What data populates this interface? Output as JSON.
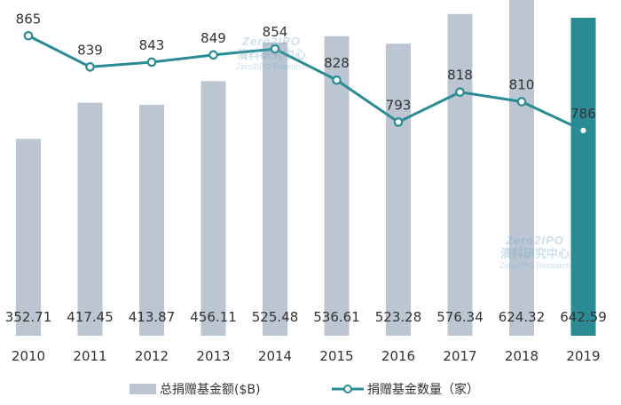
{
  "chart_data": {
    "type": "bar",
    "categories": [
      "2010",
      "2011",
      "2012",
      "2013",
      "2014",
      "2015",
      "2016",
      "2017",
      "2018",
      "2019"
    ],
    "series": [
      {
        "name": "总捐赠基金额($B)",
        "type": "bar",
        "values": [
          352.71,
          417.45,
          413.87,
          456.11,
          525.48,
          536.61,
          523.28,
          576.34,
          624.32,
          642.59
        ],
        "color": "#bcc6d3",
        "highlight_color": "#2a8b94",
        "highlight_index": 9
      },
      {
        "name": "捐赠基金数量（家）",
        "type": "line",
        "values": [
          865,
          839,
          843,
          849,
          854,
          828,
          793,
          818,
          810,
          786
        ],
        "color": "#2a8b94"
      }
    ],
    "ylim_bar": [
      0,
      700
    ],
    "ylim_line": [
      600,
      880
    ],
    "legend_position": "bottom",
    "grid": false
  },
  "watermark": {
    "logo": "Zero2IPO",
    "cn": "清科研究中心",
    "en": "Zero2IPO Research"
  }
}
